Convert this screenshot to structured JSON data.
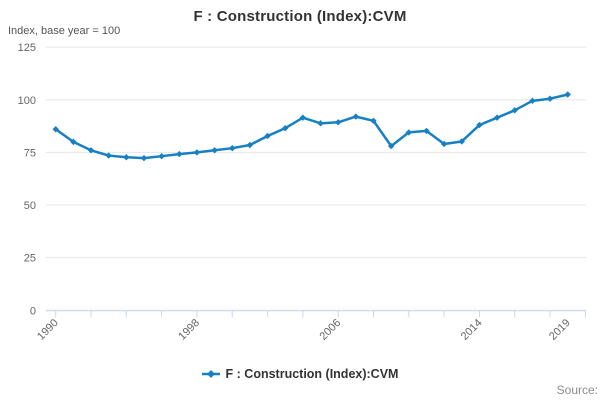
{
  "title": "F : Construction (Index):CVM",
  "y_axis_title": "Index, base year = 100",
  "legend": {
    "label": "F : Construction (Index):CVM"
  },
  "source_label": "Source:",
  "colors": {
    "series": "#1780c4",
    "grid": "#e6e6e6",
    "axis_line": "#ccd6eb",
    "tick_label": "#666666",
    "title_text": "#333333"
  },
  "chart_data": {
    "type": "line",
    "title": "F : Construction (Index):CVM",
    "ylabel": "Index, base year = 100",
    "xlabel": "",
    "ylim": [
      0,
      125
    ],
    "y_ticks": [
      0,
      25,
      50,
      75,
      100,
      125
    ],
    "x_tick_years": [
      1990,
      1992,
      1994,
      1996,
      1998,
      2000,
      2002,
      2004,
      2006,
      2008,
      2010,
      2012,
      2014,
      2016,
      2018,
      2020
    ],
    "x_labeled_years": [
      1990,
      1998,
      2006,
      2014,
      2019
    ],
    "grid": true,
    "legend_position": "bottom",
    "x": [
      1990,
      1991,
      1992,
      1993,
      1994,
      1995,
      1996,
      1997,
      1998,
      1999,
      2000,
      2001,
      2002,
      2003,
      2004,
      2005,
      2006,
      2007,
      2008,
      2009,
      2010,
      2011,
      2012,
      2013,
      2014,
      2015,
      2016,
      2017,
      2018,
      2019
    ],
    "series": [
      {
        "name": "F : Construction (Index):CVM",
        "values": [
          86,
          80,
          76,
          73.5,
          72.7,
          72.3,
          73.2,
          74.2,
          75,
          76,
          77,
          78.5,
          82.8,
          86.5,
          91.5,
          88.8,
          89.3,
          92,
          90,
          78,
          84.5,
          85.2,
          79,
          80.2,
          88,
          91.5,
          95,
          99.5,
          100.5,
          102.5
        ]
      }
    ]
  }
}
